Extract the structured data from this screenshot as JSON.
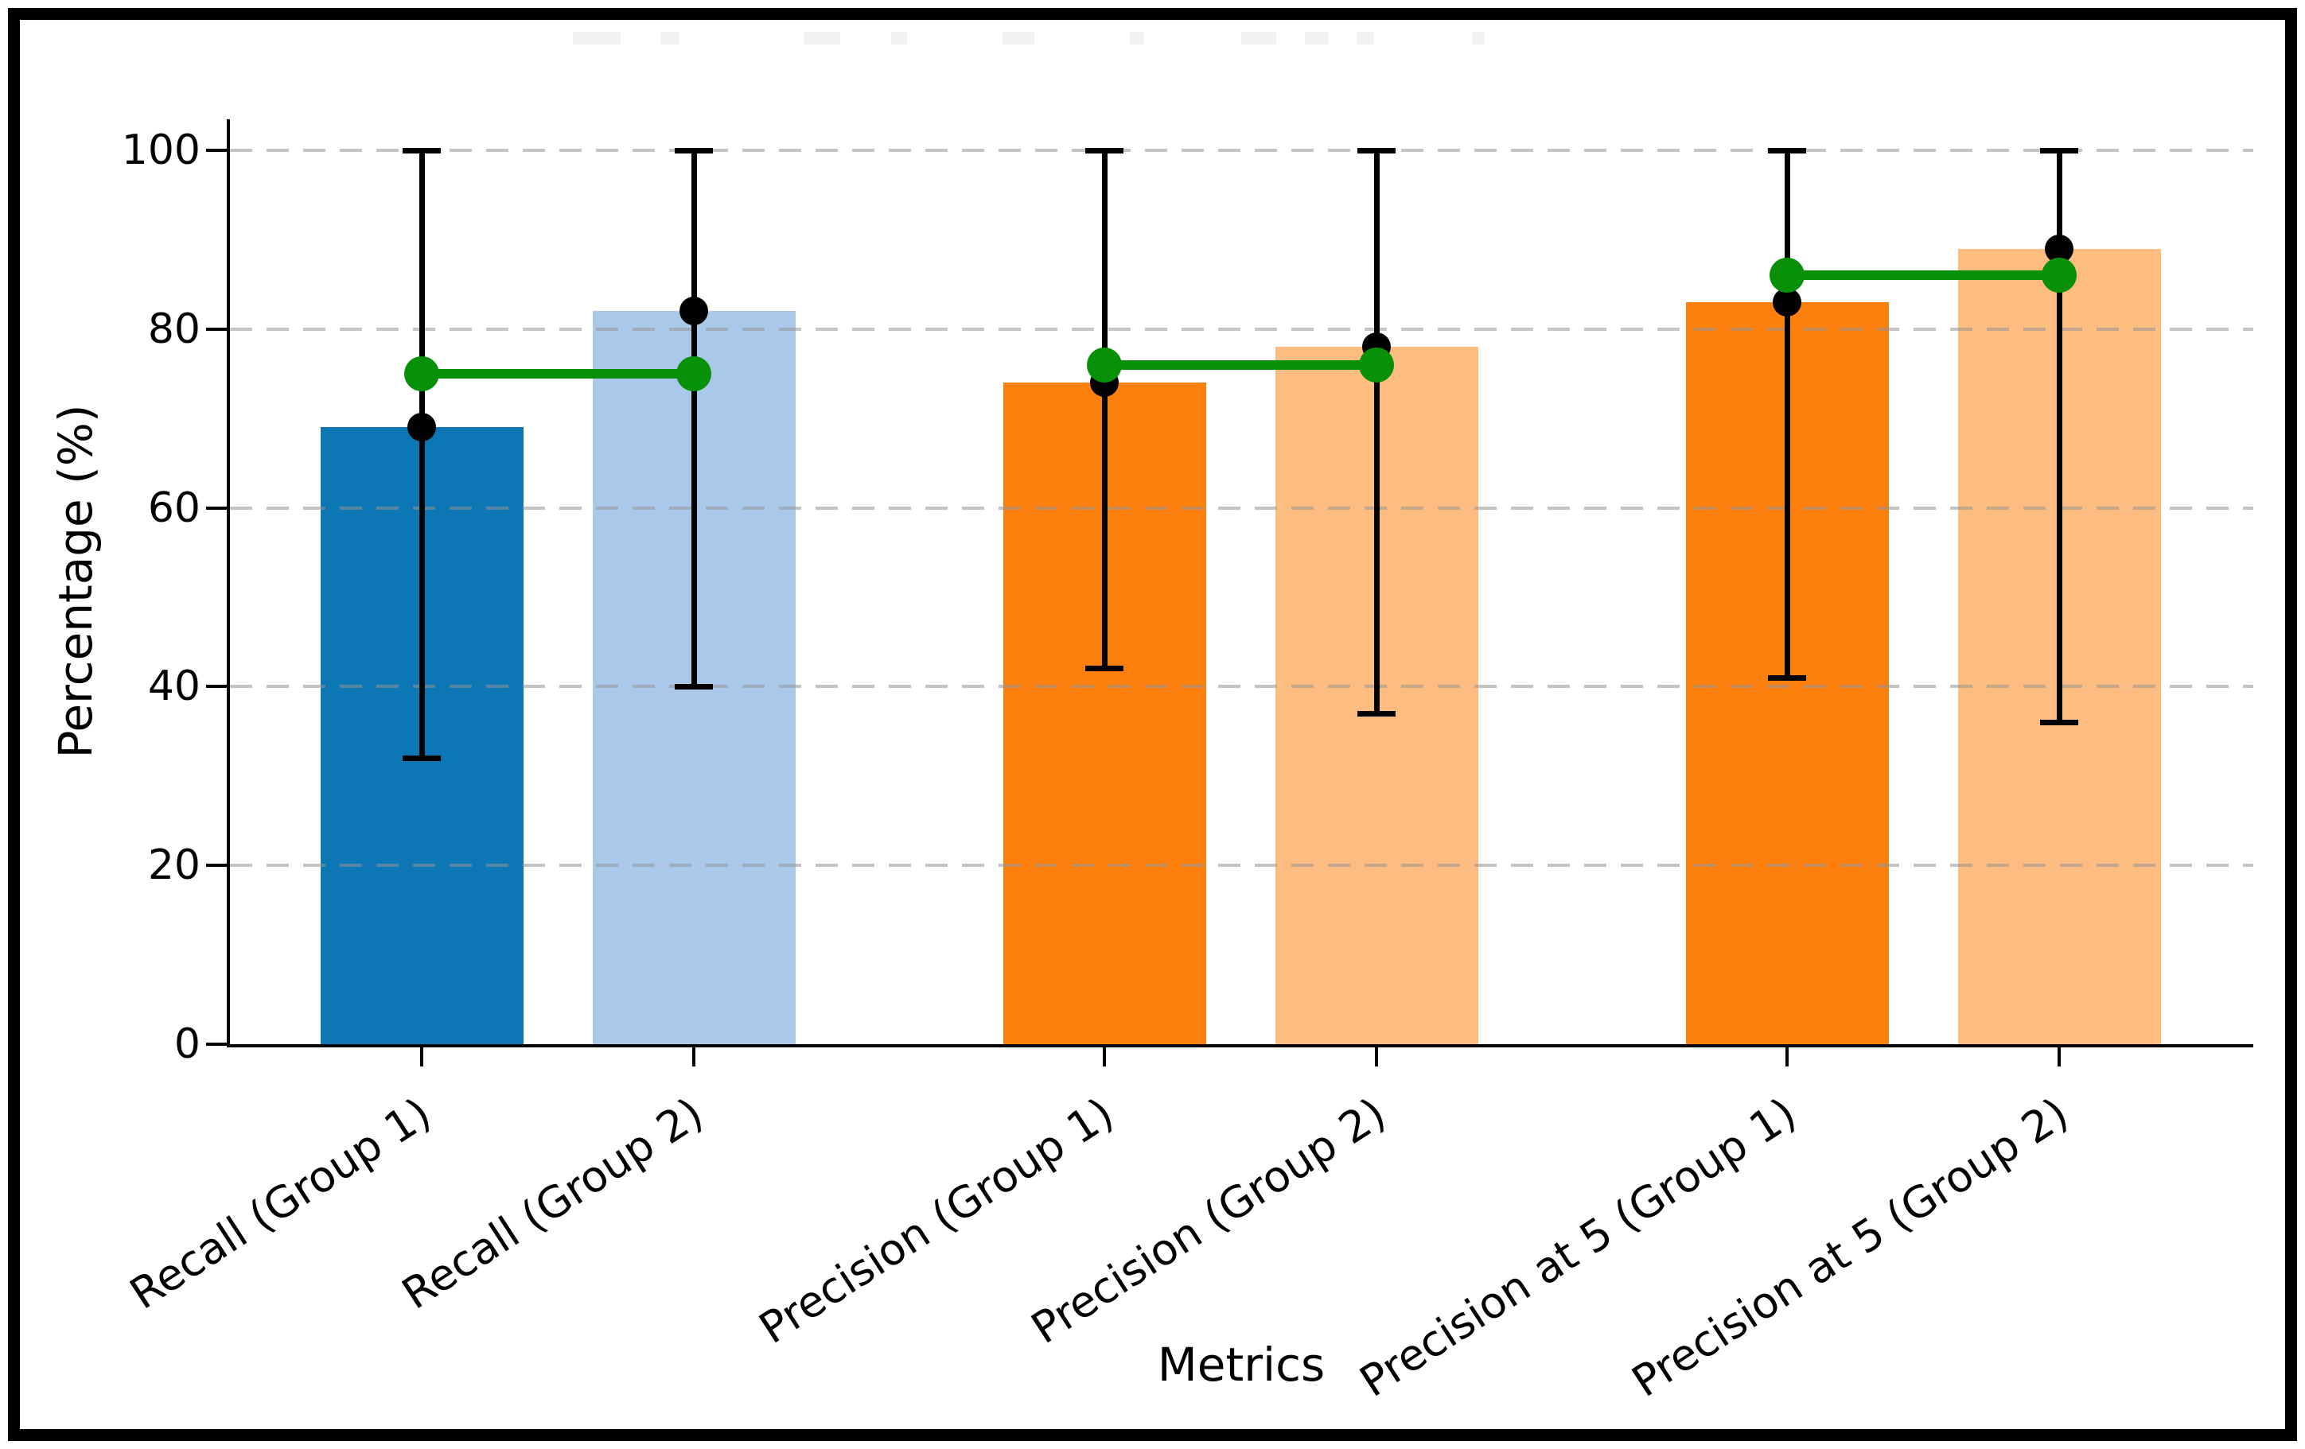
{
  "title": {
    "text": "",
    "redacted": true
  },
  "chart_data": {
    "type": "bar",
    "xlabel": "Metrics",
    "ylabel": "Percentage (%)",
    "ylim": [
      0,
      100
    ],
    "yticks": [
      0,
      20,
      40,
      60,
      80,
      100
    ],
    "yticklabels": [
      "0",
      "20",
      "40",
      "60",
      "80",
      "100"
    ],
    "grid": {
      "axis": "y",
      "style": "dashed",
      "color": "#c9c9c9",
      "drawn_over_bars": true
    },
    "legend": null,
    "categories": [
      "Recall (Group 1)",
      "Recall (Group 2)",
      "Precision (Group 1)",
      "Precision (Group 2)",
      "Precision at 5 (Group 1)",
      "Precision at 5 (Group 2)"
    ],
    "bars": [
      {
        "category": "Recall (Group 1)",
        "value": 69,
        "color": "#0d76b5",
        "error_low": 32,
        "error_high": 100,
        "point": 69
      },
      {
        "category": "Recall (Group 2)",
        "value": 82,
        "color": "#aac9ea",
        "error_low": 40,
        "error_high": 100,
        "point": 82
      },
      {
        "category": "Precision (Group 1)",
        "value": 74,
        "color": "#fd7f0e",
        "error_low": 42,
        "error_high": 100,
        "point": 74
      },
      {
        "category": "Precision (Group 2)",
        "value": 78,
        "color": "#fdbd80",
        "error_low": 37,
        "error_high": 100,
        "point": 78
      },
      {
        "category": "Precision at 5 (Group 1)",
        "value": 83,
        "color": "#fd7f0e",
        "error_low": 41,
        "error_high": 100,
        "point": 83
      },
      {
        "category": "Precision at 5 (Group 2)",
        "value": 89,
        "color": "#fdbd80",
        "error_low": 36,
        "error_high": 100,
        "point": 89
      }
    ],
    "connectors": [
      {
        "between": [
          "Recall (Group 1)",
          "Recall (Group 2)"
        ],
        "y": 75,
        "color": "#089008"
      },
      {
        "between": [
          "Precision (Group 1)",
          "Precision (Group 2)"
        ],
        "y": 76,
        "color": "#089008"
      },
      {
        "between": [
          "Precision at 5 (Group 1)",
          "Precision at 5 (Group 2)"
        ],
        "y": 86,
        "color": "#089008"
      }
    ],
    "colors": {
      "group1_blue": "#0d76b5",
      "group2_blue": "#aac9ea",
      "group1_orange": "#fd7f0e",
      "group2_orange": "#fdbd80",
      "connector_green": "#089008",
      "error_bar_black": "#000000"
    }
  }
}
